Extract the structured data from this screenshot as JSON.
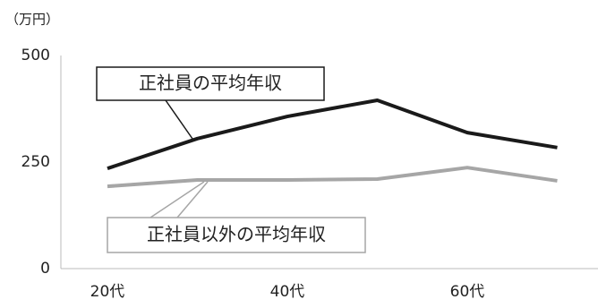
{
  "chart_data": {
    "type": "line",
    "y_label": "（万円）",
    "categories": [
      "20代",
      null,
      "40代",
      null,
      "60代",
      null
    ],
    "series": [
      {
        "name": "正社員の平均年収",
        "color": "#1a1a1a",
        "values": [
          235,
          305,
          357,
          395,
          319,
          284
        ]
      },
      {
        "name": "正社員以外の平均年収",
        "color": "#a6a6a6",
        "values": [
          193,
          208,
          208,
          210,
          237,
          206
        ]
      }
    ],
    "ylim": [
      0,
      500
    ],
    "yticks": [
      0,
      250,
      500
    ],
    "grid": false
  }
}
